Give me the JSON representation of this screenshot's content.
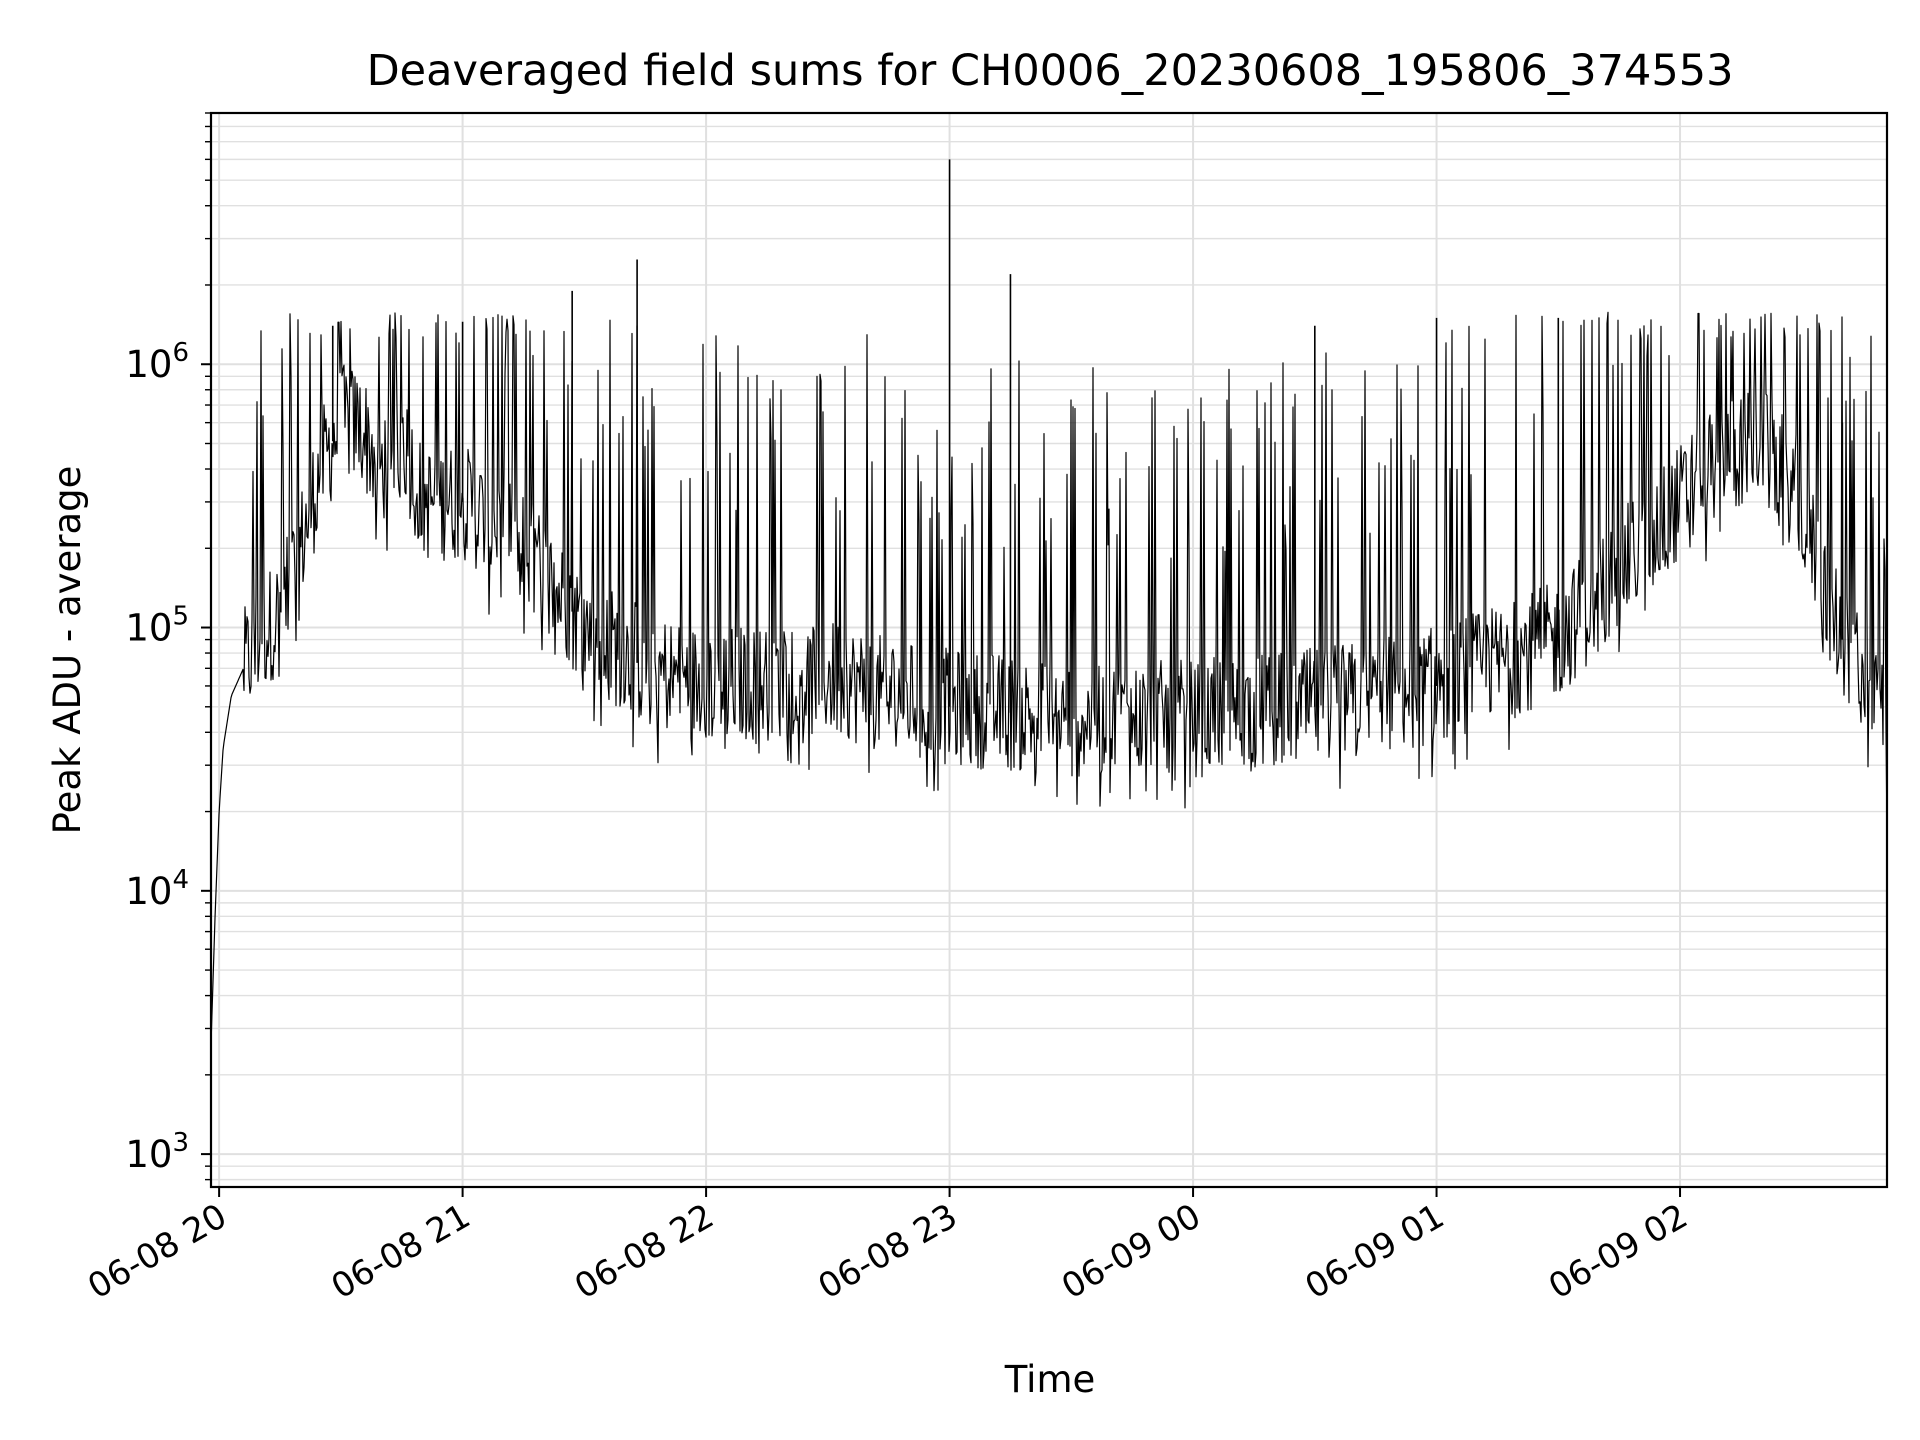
{
  "chart_data": {
    "type": "line",
    "title": "Deaveraged field sums for CH0006_20230608_195806_374553",
    "xlabel": "Time",
    "ylabel": "Peak ADU - average",
    "yscale": "log",
    "ylim": [
      750,
      9000000
    ],
    "xlim": [
      "2023-06-08 19:58",
      "2023-06-09 02:51"
    ],
    "grid": true,
    "line_color": "#000000",
    "grid_color": "#e0e0e0",
    "x_ticks": [
      {
        "label": "06-08 20",
        "value": "2023-06-08 20:00"
      },
      {
        "label": "06-08 21",
        "value": "2023-06-08 21:00"
      },
      {
        "label": "06-08 22",
        "value": "2023-06-08 22:00"
      },
      {
        "label": "06-08 23",
        "value": "2023-06-08 23:00"
      },
      {
        "label": "06-09 00",
        "value": "2023-06-09 00:00"
      },
      {
        "label": "06-09 01",
        "value": "2023-06-09 01:00"
      },
      {
        "label": "06-09 02",
        "value": "2023-06-09 02:00"
      }
    ],
    "y_ticks": [
      {
        "base": "10",
        "exp": "3",
        "value": 1000
      },
      {
        "base": "10",
        "exp": "4",
        "value": 10000
      },
      {
        "base": "10",
        "exp": "5",
        "value": 100000
      },
      {
        "base": "10",
        "exp": "6",
        "value": 1000000
      }
    ],
    "series": [
      {
        "values": [
          {
            "x": "2023-06-08 19:58",
            "y": 2600
          },
          {
            "x": "2023-06-08 19:59",
            "y": 8000
          },
          {
            "x": "2023-06-08 20:00",
            "y": 20000
          },
          {
            "x": "2023-06-08 20:01",
            "y": 35000
          },
          {
            "x": "2023-06-08 20:03",
            "y": 55000
          },
          {
            "x": "2023-06-08 20:06",
            "y": 70000
          },
          {
            "x": "2023-06-08 20:10",
            "y": 90000
          },
          {
            "x": "2023-06-08 20:12",
            "y": 100000
          },
          {
            "x": "2023-06-08 20:16",
            "y": 120000
          },
          {
            "x": "2023-06-08 20:20",
            "y": 200000
          },
          {
            "x": "2023-06-08 20:25",
            "y": 400000
          },
          {
            "x": "2023-06-08 20:30",
            "y": 600000
          },
          {
            "x": "2023-06-08 20:35",
            "y": 580000
          },
          {
            "x": "2023-06-08 20:40",
            "y": 400000
          },
          {
            "x": "2023-06-08 20:45",
            "y": 550000
          },
          {
            "x": "2023-06-08 20:50",
            "y": 300000
          },
          {
            "x": "2023-06-08 21:00",
            "y": 300000
          },
          {
            "x": "2023-06-08 21:15",
            "y": 200000
          },
          {
            "x": "2023-06-08 21:30",
            "y": 100000
          },
          {
            "x": "2023-06-08 21:45",
            "y": 70000
          },
          {
            "x": "2023-06-08 22:00",
            "y": 60000
          },
          {
            "x": "2023-06-08 22:30",
            "y": 65000
          },
          {
            "x": "2023-06-08 22:45",
            "y": 55000
          },
          {
            "x": "2023-06-08 23:00",
            "y": 50000
          },
          {
            "x": "2023-06-08 23:30",
            "y": 45000
          },
          {
            "x": "2023-06-09 00:00",
            "y": 45000
          },
          {
            "x": "2023-06-09 00:30",
            "y": 50000
          },
          {
            "x": "2023-06-09 01:00",
            "y": 60000
          },
          {
            "x": "2023-06-09 01:30",
            "y": 90000
          },
          {
            "x": "2023-06-09 01:50",
            "y": 200000
          },
          {
            "x": "2023-06-09 02:00",
            "y": 300000
          },
          {
            "x": "2023-06-09 02:10",
            "y": 450000
          },
          {
            "x": "2023-06-09 02:20",
            "y": 500000
          },
          {
            "x": "2023-06-09 02:30",
            "y": 300000
          },
          {
            "x": "2023-06-09 02:35",
            "y": 150000
          },
          {
            "x": "2023-06-09 02:40",
            "y": 90000
          },
          {
            "x": "2023-06-09 02:45",
            "y": 70000
          },
          {
            "x": "2023-06-09 02:50",
            "y": 50000
          },
          {
            "x": "2023-06-09 02:51",
            "y": 25000
          }
        ],
        "notable_spikes": [
          {
            "x": "2023-06-08 20:28",
            "y": 1400000
          },
          {
            "x": "2023-06-08 21:00",
            "y": 1450000
          },
          {
            "x": "2023-06-08 21:27",
            "y": 1900000
          },
          {
            "x": "2023-06-08 21:43",
            "y": 2500000
          },
          {
            "x": "2023-06-08 23:00",
            "y": 6000000
          },
          {
            "x": "2023-06-08 23:15",
            "y": 2200000
          },
          {
            "x": "2023-06-09 00:30",
            "y": 1400000
          },
          {
            "x": "2023-06-09 01:00",
            "y": 1500000
          },
          {
            "x": "2023-06-09 01:30",
            "y": 1500000
          },
          {
            "x": "2023-06-09 02:40",
            "y": 600000
          }
        ]
      }
    ]
  }
}
